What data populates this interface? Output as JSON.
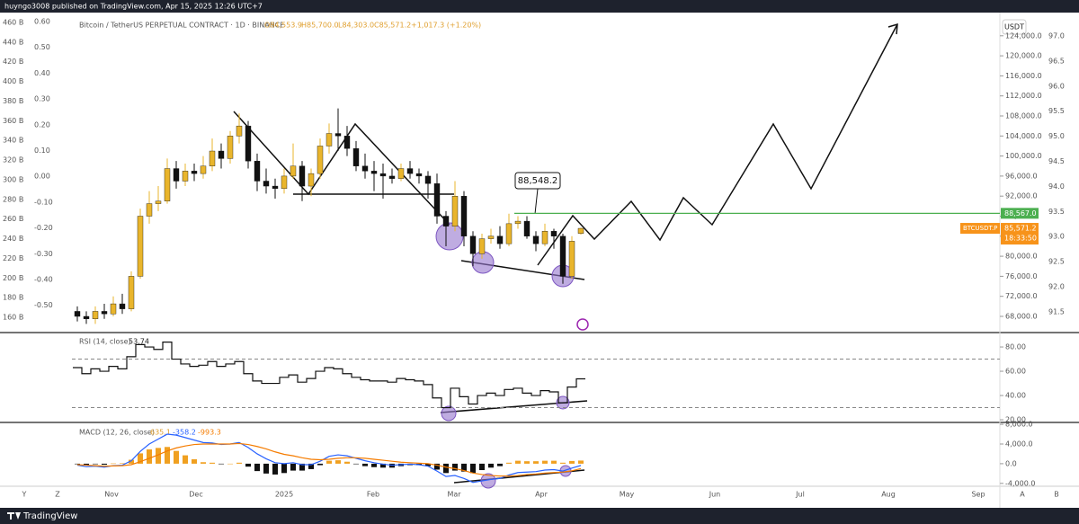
{
  "header": "huyngo3008 published on TradingView.com, Apr 15, 2025 12:26 UTC+7",
  "footer": "TradingView",
  "chart_data": {
    "type": "candlestick",
    "legend": {
      "title": "Bitcoin / TetherUS PERPETUAL CONTRACT · 1D · BINANCE",
      "open": "O84,553.9",
      "high": "H85,700.0",
      "low": "L84,303.0",
      "close": "C85,571.2",
      "change": "+1,017.3 (+1.20%)"
    },
    "currency": "USDT",
    "x_labels": [
      "Nov",
      "Dec",
      "2025",
      "Feb",
      "Mar",
      "Apr",
      "May",
      "Jun",
      "Jul",
      "Aug",
      "Sep"
    ],
    "corner_buttons": [
      "Y",
      "Z",
      "A",
      "B"
    ],
    "up_color": "#e9b52c",
    "down_color": "#111111",
    "ylim": [
      64950,
      128450
    ],
    "yticks": [
      {
        "value": 68000,
        "label": "68,000.0"
      },
      {
        "value": 72000,
        "label": "72,000.0"
      },
      {
        "value": 76000,
        "label": "76,000.0"
      },
      {
        "value": 80000,
        "label": "80,000.0"
      },
      {
        "value": 84000,
        "label": "84,000.0"
      },
      {
        "value": 88000,
        "label": "88,000.0"
      },
      {
        "value": 92000,
        "label": "92,000.0"
      },
      {
        "value": 96000,
        "label": "96,000.0"
      },
      {
        "value": 100000,
        "label": "100,000.0"
      },
      {
        "value": 104000,
        "label": "104,000.0"
      },
      {
        "value": 108000,
        "label": "108,000.0"
      },
      {
        "value": 112000,
        "label": "112,000.0"
      },
      {
        "value": 116000,
        "label": "116,000.0"
      },
      {
        "value": 120000,
        "label": "120,000.0"
      },
      {
        "value": 124000,
        "label": "124,000.0"
      }
    ],
    "overlay_scale_left_1": [
      "460 B",
      "440 B",
      "420 B",
      "400 B",
      "380 B",
      "360 B",
      "340 B",
      "320 B",
      "300 B",
      "280 B",
      "260 B",
      "240 B",
      "220 B",
      "200 B",
      "180 B",
      "160 B"
    ],
    "overlay_scale_left_2": [
      "0.60",
      "0.50",
      "0.40",
      "0.30",
      "0.20",
      "0.10",
      "0.00",
      "-0.10",
      "-0.20",
      "-0.30",
      "-0.40",
      "-0.50"
    ],
    "overlay_scale_right": [
      "97.0",
      "96.5",
      "96.0",
      "95.5",
      "95.0",
      "94.5",
      "94.0",
      "93.5",
      "93.0",
      "92.5",
      "92.0",
      "91.5"
    ],
    "open": [
      69000,
      68000,
      67500,
      69000,
      68500,
      70500,
      69500,
      76000,
      88000,
      90500,
      91000,
      97500,
      95000,
      97000,
      96500,
      98000,
      101000,
      99500,
      104000,
      106000,
      99000,
      95000,
      94000,
      93500,
      96000,
      98000,
      94000,
      96500,
      102000,
      104500,
      104000,
      101500,
      98000,
      97000,
      96500,
      96000,
      95500,
      97500,
      96500,
      96000,
      94500,
      88000,
      86000,
      92000,
      84000,
      80500,
      83500,
      84000,
      82500,
      86500,
      87000,
      84000,
      82500,
      85000,
      84000,
      76000,
      84553.9
    ],
    "high": [
      70000,
      69000,
      70000,
      70500,
      72000,
      72500,
      77000,
      89500,
      93000,
      94000,
      99500,
      99000,
      98500,
      98500,
      100000,
      103500,
      102500,
      105000,
      108500,
      107000,
      100500,
      97500,
      95500,
      97500,
      102500,
      99000,
      97500,
      103500,
      106500,
      109500,
      106000,
      103000,
      100500,
      99000,
      98500,
      97500,
      98500,
      99000,
      97500,
      97000,
      96500,
      89000,
      95000,
      93000,
      85000,
      84500,
      85500,
      86000,
      88500,
      88000,
      88000,
      85000,
      86500,
      85500,
      84500,
      84000,
      85700
    ],
    "low": [
      67000,
      66500,
      66500,
      67500,
      68000,
      68500,
      69000,
      75500,
      86500,
      89000,
      90500,
      93500,
      94000,
      95000,
      95500,
      97000,
      97500,
      98500,
      102500,
      97500,
      93000,
      92500,
      91500,
      92500,
      95500,
      91000,
      92000,
      95500,
      100500,
      101000,
      100000,
      97000,
      95500,
      93000,
      91500,
      94500,
      95000,
      95500,
      94500,
      91500,
      86500,
      82000,
      85000,
      82000,
      78000,
      79500,
      82500,
      81500,
      82000,
      85500,
      83500,
      81000,
      82000,
      81500,
      74500,
      75500,
      84303
    ],
    "close": [
      68000,
      67500,
      69000,
      68500,
      70500,
      69500,
      76000,
      88000,
      90500,
      91000,
      97500,
      95000,
      97000,
      96500,
      98000,
      101000,
      99500,
      104000,
      106000,
      99000,
      95000,
      94000,
      93500,
      96000,
      98000,
      94000,
      96500,
      102000,
      104500,
      104000,
      101500,
      98000,
      97000,
      96500,
      96000,
      95500,
      97500,
      96500,
      96000,
      94500,
      88000,
      86000,
      92000,
      84000,
      80500,
      83500,
      84000,
      82500,
      86500,
      87000,
      84000,
      82500,
      85000,
      84000,
      76000,
      83000,
      85571.2
    ],
    "level": {
      "value": 88567,
      "label": "88,567.0",
      "color": "#4caf50"
    },
    "annotation": "88,548.2",
    "price_tag": {
      "symbol": "BTCUSDT.P",
      "value": 85571.2,
      "label": "85,571.2",
      "countdown": "18:33:50",
      "color": "#f7931a"
    },
    "rsi": {
      "name": "RSI (14, close)",
      "color": "#111111",
      "ylim": [
        19.3,
        90.4
      ],
      "yticks": [
        {
          "value": 80,
          "label": "80.00"
        },
        {
          "value": 60,
          "label": "60.00"
        },
        {
          "value": 40,
          "label": "40.00"
        },
        {
          "value": 20,
          "label": "20.00"
        }
      ],
      "bands": [
        70,
        30
      ],
      "values": [
        63,
        58,
        62,
        60,
        64,
        62,
        72,
        82,
        80,
        78,
        84,
        70,
        66,
        64,
        65,
        68,
        64,
        66,
        68,
        58,
        52,
        50,
        50,
        55,
        57,
        51,
        54,
        60,
        63,
        62,
        58,
        55,
        53,
        52,
        52,
        51,
        54,
        53,
        52,
        49,
        38,
        30,
        46,
        39,
        33,
        40,
        42,
        40,
        45,
        46,
        42,
        40,
        44,
        43,
        34,
        47,
        53.74
      ]
    },
    "macd": {
      "name": "MACD (12, 26, close)",
      "ylim": [
        -4400,
        8200
      ],
      "yticks": [
        {
          "value": 8000,
          "label": "8,000.0"
        },
        {
          "value": 4000,
          "label": "4,000.0"
        },
        {
          "value": 0,
          "label": "0.0"
        },
        {
          "value": -4000,
          "label": "-4,000.0"
        }
      ],
      "histogram": {
        "color_up": "#f0a020",
        "color_down": "#111111",
        "values": [
          -100,
          -300,
          -100,
          -200,
          50,
          100,
          800,
          2100,
          2900,
          3200,
          3400,
          2600,
          1700,
          900,
          300,
          200,
          -100,
          0,
          200,
          -600,
          -1500,
          -2000,
          -2200,
          -1900,
          -1400,
          -1400,
          -1100,
          -300,
          600,
          700,
          400,
          -100,
          -500,
          -700,
          -800,
          -800,
          -500,
          -300,
          -300,
          -500,
          -1200,
          -1900,
          -1400,
          -1600,
          -1900,
          -1300,
          -800,
          -500,
          200,
          600,
          500,
          500,
          600,
          600,
          200,
          550,
          635.1
        ]
      },
      "macd_line": {
        "color": "#2962ff",
        "values": [
          -300,
          -600,
          -500,
          -700,
          -400,
          -300,
          600,
          2500,
          4000,
          5000,
          6000,
          5800,
          5300,
          4800,
          4300,
          4200,
          3900,
          4000,
          4300,
          3300,
          2000,
          1000,
          200,
          0,
          200,
          -200,
          -200,
          500,
          1500,
          1800,
          1600,
          1100,
          600,
          200,
          -100,
          -300,
          -200,
          -100,
          -200,
          -500,
          -1500,
          -2600,
          -2400,
          -3000,
          -3800,
          -3500,
          -3200,
          -3000,
          -2300,
          -1800,
          -1700,
          -1600,
          -1300,
          -1200,
          -1500,
          -900,
          -358.2
        ]
      },
      "signal_line": {
        "color": "#f57c00",
        "values": [
          -200,
          -300,
          -400,
          -500,
          -450,
          -400,
          -200,
          400,
          1100,
          1800,
          2600,
          3200,
          3600,
          3900,
          4000,
          4000,
          4000,
          4000,
          4100,
          3900,
          3500,
          3000,
          2400,
          1900,
          1600,
          1200,
          900,
          800,
          900,
          1100,
          1200,
          1200,
          1100,
          900,
          700,
          500,
          300,
          200,
          100,
          0,
          -300,
          -700,
          -1000,
          -1400,
          -1900,
          -2200,
          -2400,
          -2500,
          -2500,
          -2400,
          -2200,
          -2100,
          -1900,
          -1800,
          -1700,
          -1450,
          -993.3
        ]
      }
    }
  }
}
